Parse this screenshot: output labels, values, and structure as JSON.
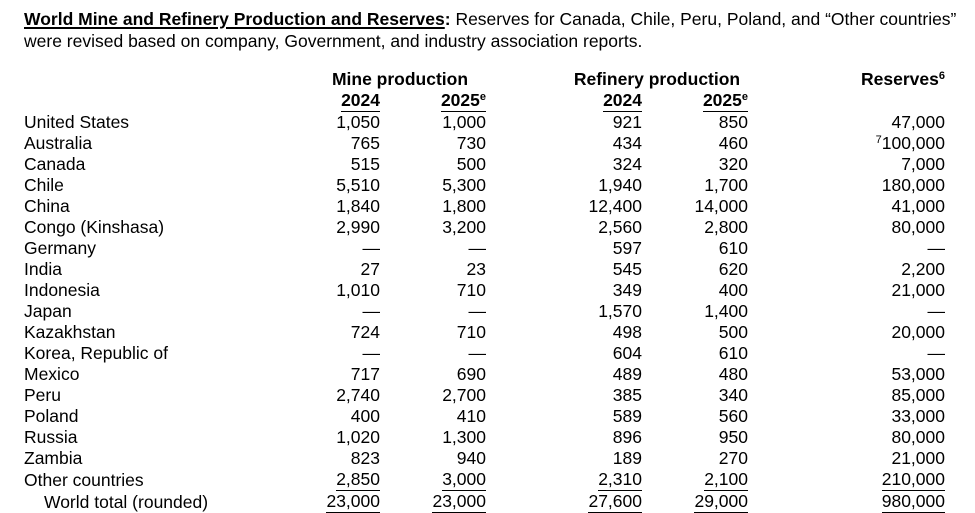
{
  "header": {
    "title": "World Mine and Refinery Production and Reserves",
    "title_colon": ":",
    "note": " Reserves for Canada, Chile, Peru, Poland, and “Other countries” were revised based on company, Government, and industry association reports."
  },
  "table": {
    "group_headers": {
      "mine": "Mine production",
      "refinery": "Refinery production",
      "reserves": "Reserves",
      "reserves_footnote": "6"
    },
    "year_headers": {
      "y2024": "2024",
      "y2025": "2025",
      "estimate_footnote": "e"
    },
    "rows": [
      {
        "country": "United States",
        "mine_2024": "1,050",
        "mine_2025": "1,000",
        "ref_2024": "921",
        "ref_2025": "850",
        "reserves": "47,000"
      },
      {
        "country": "Australia",
        "mine_2024": "765",
        "mine_2025": "730",
        "ref_2024": "434",
        "ref_2025": "460",
        "reserves": "100,000",
        "reserves_sup": "7"
      },
      {
        "country": "Canada",
        "mine_2024": "515",
        "mine_2025": "500",
        "ref_2024": "324",
        "ref_2025": "320",
        "reserves": "7,000"
      },
      {
        "country": "Chile",
        "mine_2024": "5,510",
        "mine_2025": "5,300",
        "ref_2024": "1,940",
        "ref_2025": "1,700",
        "reserves": "180,000"
      },
      {
        "country": "China",
        "mine_2024": "1,840",
        "mine_2025": "1,800",
        "ref_2024": "12,400",
        "ref_2025": "14,000",
        "reserves": "41,000"
      },
      {
        "country": "Congo (Kinshasa)",
        "mine_2024": "2,990",
        "mine_2025": "3,200",
        "ref_2024": "2,560",
        "ref_2025": "2,800",
        "reserves": "80,000"
      },
      {
        "country": "Germany",
        "mine_2024": "—",
        "mine_2025": "—",
        "ref_2024": "597",
        "ref_2025": "610",
        "reserves": "—"
      },
      {
        "country": "India",
        "mine_2024": "27",
        "mine_2025": "23",
        "ref_2024": "545",
        "ref_2025": "620",
        "reserves": "2,200"
      },
      {
        "country": "Indonesia",
        "mine_2024": "1,010",
        "mine_2025": "710",
        "ref_2024": "349",
        "ref_2025": "400",
        "reserves": "21,000"
      },
      {
        "country": "Japan",
        "mine_2024": "—",
        "mine_2025": "—",
        "ref_2024": "1,570",
        "ref_2025": "1,400",
        "reserves": "—"
      },
      {
        "country": "Kazakhstan",
        "mine_2024": "724",
        "mine_2025": "710",
        "ref_2024": "498",
        "ref_2025": "500",
        "reserves": "20,000"
      },
      {
        "country": "Korea, Republic of",
        "mine_2024": "—",
        "mine_2025": "—",
        "ref_2024": "604",
        "ref_2025": "610",
        "reserves": "—"
      },
      {
        "country": "Mexico",
        "mine_2024": "717",
        "mine_2025": "690",
        "ref_2024": "489",
        "ref_2025": "480",
        "reserves": "53,000"
      },
      {
        "country": "Peru",
        "mine_2024": "2,740",
        "mine_2025": "2,700",
        "ref_2024": "385",
        "ref_2025": "340",
        "reserves": "85,000"
      },
      {
        "country": "Poland",
        "mine_2024": "400",
        "mine_2025": "410",
        "ref_2024": "589",
        "ref_2025": "560",
        "reserves": "33,000"
      },
      {
        "country": "Russia",
        "mine_2024": "1,020",
        "mine_2025": "1,300",
        "ref_2024": "896",
        "ref_2025": "950",
        "reserves": "80,000"
      },
      {
        "country": "Zambia",
        "mine_2024": "823",
        "mine_2025": "940",
        "ref_2024": "189",
        "ref_2025": "270",
        "reserves": "21,000"
      },
      {
        "country": "Other countries",
        "mine_2024": "2,850",
        "mine_2025": "3,000",
        "ref_2024": "2,310",
        "ref_2025": "2,100",
        "reserves": "210,000",
        "underline": true
      },
      {
        "country": "World total (rounded)",
        "mine_2024": "23,000",
        "mine_2025": "23,000",
        "ref_2024": "27,600",
        "ref_2025": "29,000",
        "reserves": "980,000",
        "total": true,
        "indent": true
      }
    ]
  }
}
